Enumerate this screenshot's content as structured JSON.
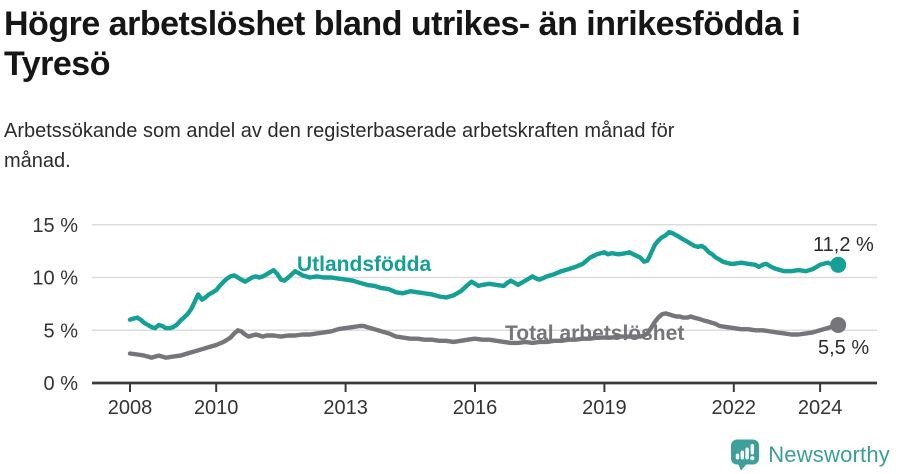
{
  "header": {
    "title_line1": "Högre arbetslöshet bland utrikes- än inrikesfödda i",
    "title_line2": "Tyresö",
    "subtitle_line1": "Arbetssökande som andel av den registerbaserade arbetskraften månad för",
    "subtitle_line2": "månad."
  },
  "footer": {
    "brand": "Newsworthy",
    "logo_icon": "newsworthy-speech-bubble-bar-chart-icon",
    "logo_color": "#3da09b"
  },
  "chart_data": {
    "type": "line",
    "title": "Högre arbetslöshet bland utrikes- än inrikesfödda i Tyresö",
    "subtitle": "Arbetssökande som andel av den registerbaserade arbetskraften månad för månad.",
    "xlabel": "",
    "ylabel": "%",
    "xlim": [
      2007.12,
      2025.32
    ],
    "ylim": [
      0,
      15.6
    ],
    "x_ticks": [
      2008,
      2010,
      2013,
      2016,
      2019,
      2022,
      2024
    ],
    "y_ticks": [
      0,
      5,
      10,
      15
    ],
    "y_tick_labels": [
      "0 %",
      "5 %",
      "10 %",
      "15 %"
    ],
    "grid": "horizontal gridlines at 5, 10, 15",
    "legend_position": "inline labels on lines",
    "layout": {
      "grid_color": "#dcdcdc",
      "axis_color": "#3a3a3a",
      "tick_label_color": "#333333",
      "line_width": 4.4,
      "end_dot_radius": 8
    },
    "series": [
      {
        "name": "Utlandsfödda",
        "color": "#14a094",
        "end_label": "11,2 %",
        "end_value": 11.2,
        "points": [
          [
            2008.0,
            6.0
          ],
          [
            2008.08,
            6.1
          ],
          [
            2008.17,
            6.2
          ],
          [
            2008.25,
            6.0
          ],
          [
            2008.33,
            5.7
          ],
          [
            2008.42,
            5.5
          ],
          [
            2008.5,
            5.3
          ],
          [
            2008.58,
            5.2
          ],
          [
            2008.67,
            5.5
          ],
          [
            2008.75,
            5.4
          ],
          [
            2008.83,
            5.2
          ],
          [
            2008.92,
            5.2
          ],
          [
            2009.0,
            5.3
          ],
          [
            2009.08,
            5.5
          ],
          [
            2009.17,
            5.9
          ],
          [
            2009.25,
            6.2
          ],
          [
            2009.33,
            6.5
          ],
          [
            2009.42,
            7.0
          ],
          [
            2009.5,
            7.7
          ],
          [
            2009.58,
            8.4
          ],
          [
            2009.67,
            7.9
          ],
          [
            2009.75,
            8.1
          ],
          [
            2009.83,
            8.4
          ],
          [
            2009.92,
            8.6
          ],
          [
            2010.0,
            8.8
          ],
          [
            2010.08,
            9.2
          ],
          [
            2010.17,
            9.6
          ],
          [
            2010.25,
            9.9
          ],
          [
            2010.33,
            10.1
          ],
          [
            2010.42,
            10.2
          ],
          [
            2010.5,
            10.0
          ],
          [
            2010.58,
            9.8
          ],
          [
            2010.67,
            9.6
          ],
          [
            2010.75,
            9.8
          ],
          [
            2010.83,
            10.0
          ],
          [
            2010.92,
            10.1
          ],
          [
            2011.0,
            10.0
          ],
          [
            2011.08,
            10.1
          ],
          [
            2011.17,
            10.3
          ],
          [
            2011.25,
            10.5
          ],
          [
            2011.33,
            10.7
          ],
          [
            2011.42,
            10.3
          ],
          [
            2011.5,
            9.8
          ],
          [
            2011.58,
            9.7
          ],
          [
            2011.67,
            10.0
          ],
          [
            2011.75,
            10.3
          ],
          [
            2011.83,
            10.6
          ],
          [
            2011.92,
            10.4
          ],
          [
            2012.0,
            10.2
          ],
          [
            2012.17,
            10.0
          ],
          [
            2012.33,
            10.1
          ],
          [
            2012.5,
            10.0
          ],
          [
            2012.67,
            10.0
          ],
          [
            2012.83,
            9.9
          ],
          [
            2013.0,
            9.8
          ],
          [
            2013.17,
            9.7
          ],
          [
            2013.33,
            9.5
          ],
          [
            2013.5,
            9.3
          ],
          [
            2013.67,
            9.2
          ],
          [
            2013.83,
            9.0
          ],
          [
            2014.0,
            8.9
          ],
          [
            2014.17,
            8.6
          ],
          [
            2014.33,
            8.5
          ],
          [
            2014.5,
            8.7
          ],
          [
            2014.67,
            8.6
          ],
          [
            2014.83,
            8.5
          ],
          [
            2015.0,
            8.4
          ],
          [
            2015.17,
            8.2
          ],
          [
            2015.33,
            8.1
          ],
          [
            2015.5,
            8.3
          ],
          [
            2015.67,
            8.7
          ],
          [
            2015.83,
            9.3
          ],
          [
            2015.92,
            9.6
          ],
          [
            2016.0,
            9.4
          ],
          [
            2016.08,
            9.2
          ],
          [
            2016.17,
            9.3
          ],
          [
            2016.33,
            9.4
          ],
          [
            2016.5,
            9.3
          ],
          [
            2016.67,
            9.2
          ],
          [
            2016.75,
            9.5
          ],
          [
            2016.83,
            9.7
          ],
          [
            2016.92,
            9.5
          ],
          [
            2017.0,
            9.3
          ],
          [
            2017.08,
            9.5
          ],
          [
            2017.25,
            9.9
          ],
          [
            2017.33,
            10.1
          ],
          [
            2017.42,
            9.9
          ],
          [
            2017.5,
            9.8
          ],
          [
            2017.67,
            10.1
          ],
          [
            2017.83,
            10.3
          ],
          [
            2018.0,
            10.6
          ],
          [
            2018.17,
            10.8
          ],
          [
            2018.33,
            11.0
          ],
          [
            2018.5,
            11.3
          ],
          [
            2018.67,
            11.9
          ],
          [
            2018.83,
            12.2
          ],
          [
            2019.0,
            12.4
          ],
          [
            2019.08,
            12.2
          ],
          [
            2019.17,
            12.3
          ],
          [
            2019.33,
            12.2
          ],
          [
            2019.5,
            12.3
          ],
          [
            2019.58,
            12.4
          ],
          [
            2019.67,
            12.2
          ],
          [
            2019.83,
            11.9
          ],
          [
            2019.92,
            11.5
          ],
          [
            2020.0,
            11.6
          ],
          [
            2020.08,
            12.3
          ],
          [
            2020.17,
            13.1
          ],
          [
            2020.25,
            13.5
          ],
          [
            2020.33,
            13.8
          ],
          [
            2020.42,
            14.0
          ],
          [
            2020.5,
            14.3
          ],
          [
            2020.58,
            14.2
          ],
          [
            2020.67,
            14.0
          ],
          [
            2020.75,
            13.8
          ],
          [
            2020.83,
            13.6
          ],
          [
            2020.92,
            13.4
          ],
          [
            2021.0,
            13.2
          ],
          [
            2021.08,
            13.0
          ],
          [
            2021.17,
            12.9
          ],
          [
            2021.25,
            13.0
          ],
          [
            2021.33,
            12.8
          ],
          [
            2021.42,
            12.4
          ],
          [
            2021.5,
            12.2
          ],
          [
            2021.58,
            11.9
          ],
          [
            2021.67,
            11.7
          ],
          [
            2021.75,
            11.5
          ],
          [
            2021.83,
            11.4
          ],
          [
            2021.92,
            11.3
          ],
          [
            2022.0,
            11.3
          ],
          [
            2022.17,
            11.4
          ],
          [
            2022.33,
            11.3
          ],
          [
            2022.5,
            11.2
          ],
          [
            2022.58,
            11.0
          ],
          [
            2022.67,
            11.2
          ],
          [
            2022.75,
            11.3
          ],
          [
            2022.83,
            11.1
          ],
          [
            2022.92,
            10.9
          ],
          [
            2023.0,
            10.8
          ],
          [
            2023.17,
            10.6
          ],
          [
            2023.33,
            10.6
          ],
          [
            2023.5,
            10.7
          ],
          [
            2023.67,
            10.6
          ],
          [
            2023.83,
            10.8
          ],
          [
            2023.92,
            11.0
          ],
          [
            2024.0,
            11.2
          ],
          [
            2024.08,
            11.3
          ],
          [
            2024.17,
            11.4
          ],
          [
            2024.25,
            11.3
          ],
          [
            2024.33,
            11.1
          ],
          [
            2024.42,
            11.2
          ]
        ]
      },
      {
        "name": "Total arbetslöshet",
        "color": "#76767a",
        "end_label": "5,5 %",
        "end_value": 5.5,
        "points": [
          [
            2008.0,
            2.8
          ],
          [
            2008.17,
            2.7
          ],
          [
            2008.33,
            2.6
          ],
          [
            2008.42,
            2.5
          ],
          [
            2008.5,
            2.4
          ],
          [
            2008.58,
            2.5
          ],
          [
            2008.67,
            2.6
          ],
          [
            2008.75,
            2.5
          ],
          [
            2008.83,
            2.4
          ],
          [
            2009.0,
            2.5
          ],
          [
            2009.17,
            2.6
          ],
          [
            2009.33,
            2.8
          ],
          [
            2009.5,
            3.0
          ],
          [
            2009.67,
            3.2
          ],
          [
            2009.83,
            3.4
          ],
          [
            2010.0,
            3.6
          ],
          [
            2010.17,
            3.9
          ],
          [
            2010.33,
            4.3
          ],
          [
            2010.42,
            4.7
          ],
          [
            2010.5,
            5.0
          ],
          [
            2010.58,
            4.9
          ],
          [
            2010.67,
            4.6
          ],
          [
            2010.75,
            4.4
          ],
          [
            2010.83,
            4.5
          ],
          [
            2010.92,
            4.6
          ],
          [
            2011.0,
            4.5
          ],
          [
            2011.08,
            4.4
          ],
          [
            2011.17,
            4.5
          ],
          [
            2011.33,
            4.5
          ],
          [
            2011.5,
            4.4
          ],
          [
            2011.67,
            4.5
          ],
          [
            2011.83,
            4.5
          ],
          [
            2012.0,
            4.6
          ],
          [
            2012.17,
            4.6
          ],
          [
            2012.33,
            4.7
          ],
          [
            2012.5,
            4.8
          ],
          [
            2012.67,
            4.9
          ],
          [
            2012.83,
            5.1
          ],
          [
            2013.0,
            5.2
          ],
          [
            2013.17,
            5.3
          ],
          [
            2013.33,
            5.4
          ],
          [
            2013.42,
            5.4
          ],
          [
            2013.5,
            5.3
          ],
          [
            2013.67,
            5.1
          ],
          [
            2013.83,
            4.9
          ],
          [
            2014.0,
            4.7
          ],
          [
            2014.17,
            4.4
          ],
          [
            2014.33,
            4.3
          ],
          [
            2014.5,
            4.2
          ],
          [
            2014.67,
            4.2
          ],
          [
            2014.83,
            4.1
          ],
          [
            2015.0,
            4.1
          ],
          [
            2015.17,
            4.0
          ],
          [
            2015.33,
            4.0
          ],
          [
            2015.5,
            3.9
          ],
          [
            2015.67,
            4.0
          ],
          [
            2015.83,
            4.1
          ],
          [
            2016.0,
            4.2
          ],
          [
            2016.17,
            4.1
          ],
          [
            2016.33,
            4.1
          ],
          [
            2016.5,
            4.0
          ],
          [
            2016.67,
            3.9
          ],
          [
            2016.83,
            3.8
          ],
          [
            2017.0,
            3.8
          ],
          [
            2017.17,
            3.9
          ],
          [
            2017.33,
            3.8
          ],
          [
            2017.5,
            3.9
          ],
          [
            2017.67,
            3.9
          ],
          [
            2017.83,
            4.0
          ],
          [
            2018.0,
            4.0
          ],
          [
            2018.17,
            4.1
          ],
          [
            2018.33,
            4.1
          ],
          [
            2018.5,
            4.2
          ],
          [
            2018.67,
            4.2
          ],
          [
            2018.83,
            4.3
          ],
          [
            2019.0,
            4.3
          ],
          [
            2019.17,
            4.3
          ],
          [
            2019.33,
            4.4
          ],
          [
            2019.5,
            4.4
          ],
          [
            2019.67,
            4.4
          ],
          [
            2019.83,
            4.4
          ],
          [
            2019.92,
            4.5
          ],
          [
            2020.0,
            4.7
          ],
          [
            2020.08,
            5.2
          ],
          [
            2020.17,
            5.8
          ],
          [
            2020.25,
            6.2
          ],
          [
            2020.33,
            6.5
          ],
          [
            2020.42,
            6.6
          ],
          [
            2020.5,
            6.5
          ],
          [
            2020.58,
            6.4
          ],
          [
            2020.67,
            6.3
          ],
          [
            2020.75,
            6.3
          ],
          [
            2020.83,
            6.2
          ],
          [
            2020.92,
            6.2
          ],
          [
            2021.0,
            6.3
          ],
          [
            2021.08,
            6.2
          ],
          [
            2021.17,
            6.1
          ],
          [
            2021.25,
            6.0
          ],
          [
            2021.33,
            5.9
          ],
          [
            2021.42,
            5.8
          ],
          [
            2021.5,
            5.7
          ],
          [
            2021.58,
            5.6
          ],
          [
            2021.67,
            5.4
          ],
          [
            2021.83,
            5.3
          ],
          [
            2022.0,
            5.2
          ],
          [
            2022.17,
            5.1
          ],
          [
            2022.33,
            5.1
          ],
          [
            2022.5,
            5.0
          ],
          [
            2022.67,
            5.0
          ],
          [
            2022.83,
            4.9
          ],
          [
            2023.0,
            4.8
          ],
          [
            2023.17,
            4.7
          ],
          [
            2023.33,
            4.6
          ],
          [
            2023.5,
            4.6
          ],
          [
            2023.67,
            4.7
          ],
          [
            2023.83,
            4.8
          ],
          [
            2023.92,
            4.9
          ],
          [
            2024.0,
            5.0
          ],
          [
            2024.17,
            5.2
          ],
          [
            2024.33,
            5.4
          ],
          [
            2024.42,
            5.5
          ]
        ]
      }
    ]
  }
}
